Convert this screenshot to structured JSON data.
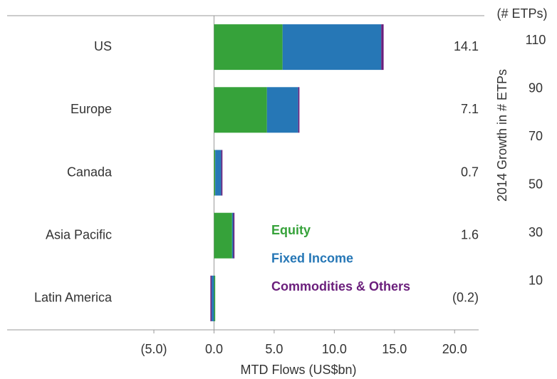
{
  "chart_data": {
    "type": "stacked_barh",
    "categories": [
      "US",
      "Europe",
      "Canada",
      "Asia Pacific",
      "Latin America"
    ],
    "series": [
      {
        "name": "Equity",
        "color": "#36a23a",
        "values": [
          5.7,
          4.4,
          0.1,
          1.5,
          0.1
        ]
      },
      {
        "name": "Fixed Income",
        "color": "#2677b6",
        "values": [
          8.2,
          2.6,
          0.5,
          0.1,
          -0.2
        ]
      },
      {
        "name": "Commodities & Others",
        "color": "#6b1f7c",
        "values": [
          0.2,
          0.1,
          0.1,
          0.1,
          -0.1
        ]
      }
    ],
    "totals": [
      14.1,
      7.1,
      0.7,
      1.6,
      -0.2
    ],
    "total_labels": [
      "14.1",
      "7.1",
      "0.7",
      "1.6",
      "(0.2)"
    ],
    "xlabel": "MTD Flows (US$bn)",
    "xlim": [
      -17.2,
      22
    ],
    "xticks": [
      {
        "value": -5,
        "label": "(5.0)"
      },
      {
        "value": 0,
        "label": "0.0"
      },
      {
        "value": 5,
        "label": "5.0"
      },
      {
        "value": 10,
        "label": "10.0"
      },
      {
        "value": 15,
        "label": "15.0"
      },
      {
        "value": 20,
        "label": "20.0"
      }
    ],
    "y2label": "2014 Growth in # ETPs",
    "y2unit": "(# ETPs)",
    "y2lim": [
      -10.3,
      120.4
    ],
    "y2ticks": [
      10,
      30,
      50,
      70,
      90,
      110
    ]
  }
}
